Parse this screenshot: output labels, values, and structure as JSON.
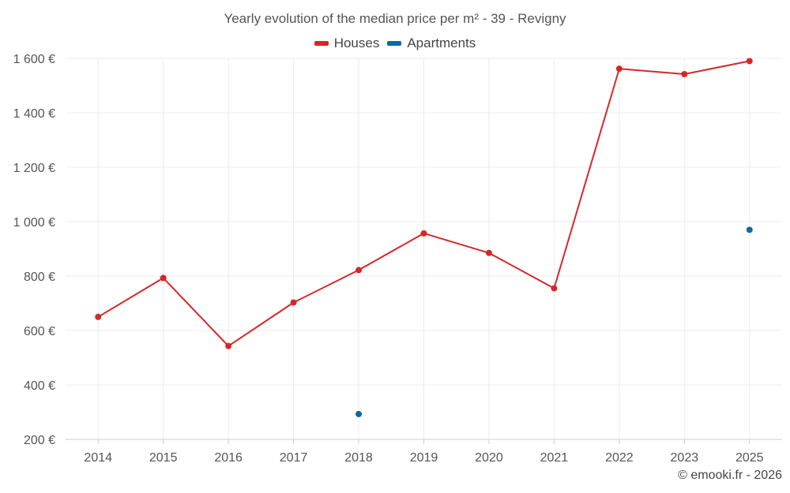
{
  "chart_data": {
    "type": "line",
    "title": "Yearly evolution of the median price per m² - 39 - Revigny",
    "categories": [
      "2014",
      "2015",
      "2016",
      "2017",
      "2018",
      "2019",
      "2020",
      "2021",
      "2022",
      "2023",
      "2025"
    ],
    "series": [
      {
        "name": "Houses",
        "color": "#d62728",
        "values": [
          650,
          793,
          543,
          703,
          822,
          957,
          885,
          755,
          1562,
          1542,
          1590
        ]
      },
      {
        "name": "Apartments",
        "color": "#0a6aa1",
        "values": [
          null,
          null,
          null,
          null,
          293,
          null,
          null,
          null,
          null,
          null,
          970
        ]
      }
    ],
    "ylim": [
      200,
      1600
    ],
    "yticks": [
      200,
      400,
      600,
      800,
      1000,
      1200,
      1400,
      1600
    ],
    "ytick_labels": [
      "200 €",
      "400 €",
      "600 €",
      "800 €",
      "1 000 €",
      "1 200 €",
      "1 400 €",
      "1 600 €"
    ],
    "xlabel": "",
    "ylabel": "",
    "grid": true,
    "legend_position": "top-center"
  },
  "credit": "© emooki.fr - 2026"
}
